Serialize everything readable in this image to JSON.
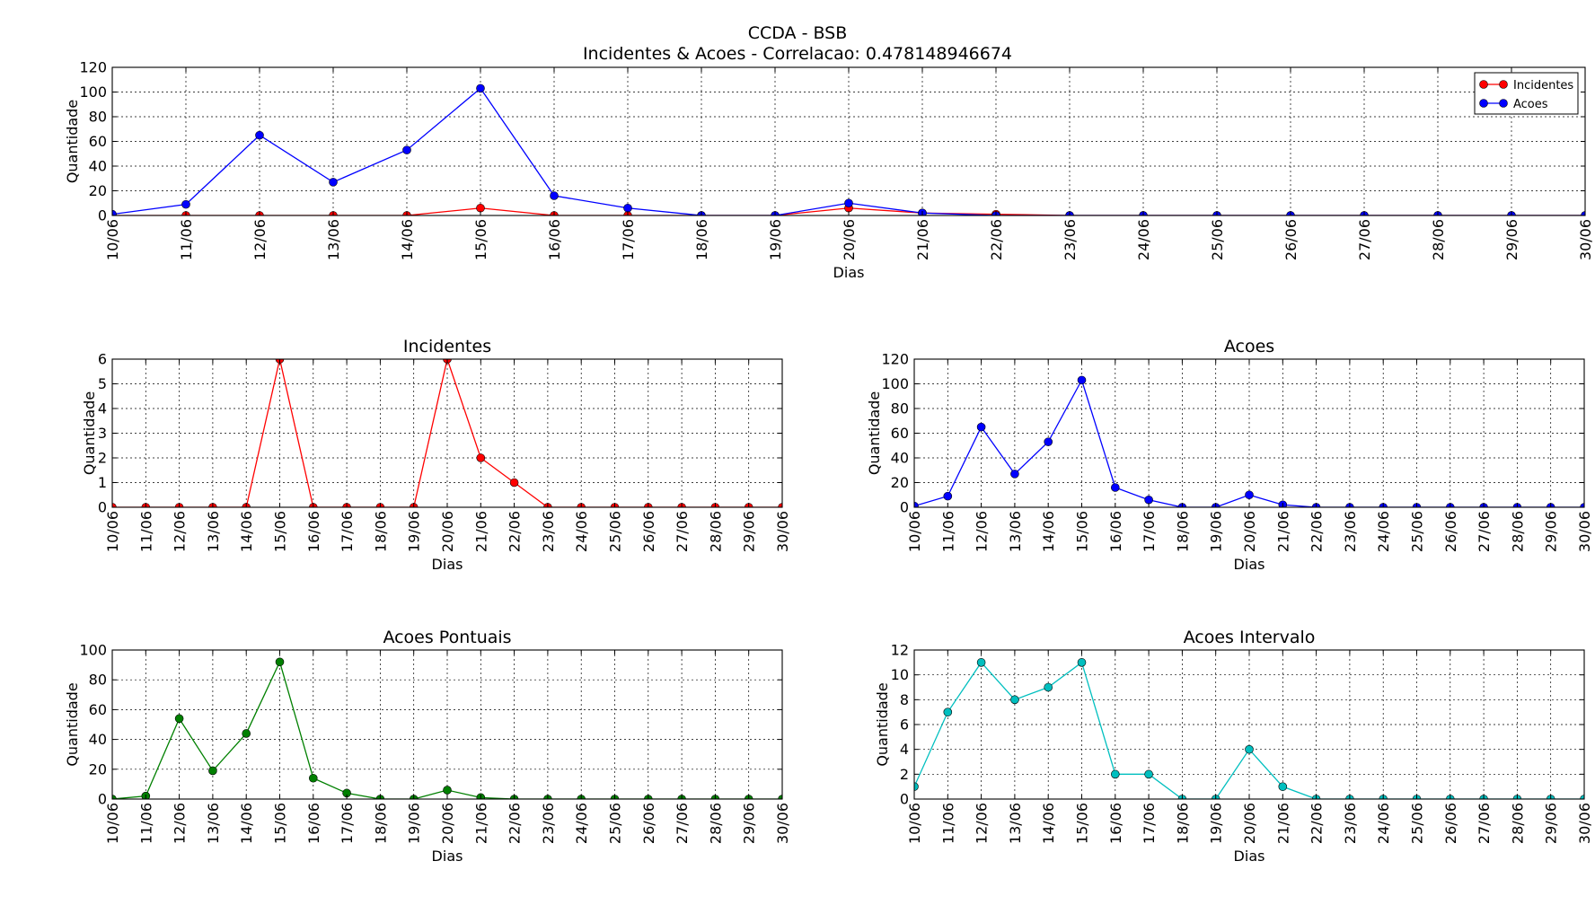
{
  "figure": {
    "title": "CCDA - BSB",
    "subtitle": "Incidentes & Acoes - Correlacao: 0.478148946674"
  },
  "chart_data": [
    {
      "id": "combined",
      "type": "line",
      "title": "",
      "xlabel": "Dias",
      "ylabel": "Quantidade",
      "ylim": [
        0,
        120
      ],
      "yticks": [
        0,
        20,
        40,
        60,
        80,
        100,
        120
      ],
      "categories": [
        "10/06",
        "11/06",
        "12/06",
        "13/06",
        "14/06",
        "15/06",
        "16/06",
        "17/06",
        "18/06",
        "19/06",
        "20/06",
        "21/06",
        "22/06",
        "23/06",
        "24/06",
        "25/06",
        "26/06",
        "27/06",
        "28/06",
        "29/06",
        "30/06"
      ],
      "grid": true,
      "legend": "top-right",
      "series": [
        {
          "name": "Incidentes",
          "color": "#ff0000",
          "values": [
            0,
            0,
            0,
            0,
            0,
            6,
            0,
            0,
            0,
            0,
            6,
            2,
            1,
            0,
            0,
            0,
            0,
            0,
            0,
            0,
            0
          ]
        },
        {
          "name": "Acoes",
          "color": "#0000ff",
          "values": [
            1,
            9,
            65,
            27,
            53,
            103,
            16,
            6,
            0,
            0,
            10,
            2,
            0,
            0,
            0,
            0,
            0,
            0,
            0,
            0,
            0
          ]
        }
      ]
    },
    {
      "id": "incidentes",
      "type": "line",
      "title": "Incidentes",
      "xlabel": "Dias",
      "ylabel": "Quantidade",
      "ylim": [
        0,
        6
      ],
      "yticks": [
        0,
        1,
        2,
        3,
        4,
        5,
        6
      ],
      "categories": [
        "10/06",
        "11/06",
        "12/06",
        "13/06",
        "14/06",
        "15/06",
        "16/06",
        "17/06",
        "18/06",
        "19/06",
        "20/06",
        "21/06",
        "22/06",
        "23/06",
        "24/06",
        "25/06",
        "26/06",
        "27/06",
        "28/06",
        "29/06",
        "30/06"
      ],
      "grid": true,
      "series": [
        {
          "color": "#ff0000",
          "values": [
            0,
            0,
            0,
            0,
            0,
            6,
            0,
            0,
            0,
            0,
            6,
            2,
            1,
            0,
            0,
            0,
            0,
            0,
            0,
            0,
            0
          ]
        }
      ]
    },
    {
      "id": "acoes",
      "type": "line",
      "title": "Acoes",
      "xlabel": "Dias",
      "ylabel": "Quantidade",
      "ylim": [
        0,
        120
      ],
      "yticks": [
        0,
        20,
        40,
        60,
        80,
        100,
        120
      ],
      "categories": [
        "10/06",
        "11/06",
        "12/06",
        "13/06",
        "14/06",
        "15/06",
        "16/06",
        "17/06",
        "18/06",
        "19/06",
        "20/06",
        "21/06",
        "22/06",
        "23/06",
        "24/06",
        "25/06",
        "26/06",
        "27/06",
        "28/06",
        "29/06",
        "30/06"
      ],
      "grid": true,
      "series": [
        {
          "color": "#0000ff",
          "values": [
            1,
            9,
            65,
            27,
            53,
            103,
            16,
            6,
            0,
            0,
            10,
            2,
            0,
            0,
            0,
            0,
            0,
            0,
            0,
            0,
            0
          ]
        }
      ]
    },
    {
      "id": "acoes-pontuais",
      "type": "line",
      "title": "Acoes Pontuais",
      "xlabel": "Dias",
      "ylabel": "Quantidade",
      "ylim": [
        0,
        100
      ],
      "yticks": [
        0,
        20,
        40,
        60,
        80,
        100
      ],
      "categories": [
        "10/06",
        "11/06",
        "12/06",
        "13/06",
        "14/06",
        "15/06",
        "16/06",
        "17/06",
        "18/06",
        "19/06",
        "20/06",
        "21/06",
        "22/06",
        "23/06",
        "24/06",
        "25/06",
        "26/06",
        "27/06",
        "28/06",
        "29/06",
        "30/06"
      ],
      "grid": true,
      "series": [
        {
          "color": "#008000",
          "values": [
            0,
            2,
            54,
            19,
            44,
            92,
            14,
            4,
            0,
            0,
            6,
            1,
            0,
            0,
            0,
            0,
            0,
            0,
            0,
            0,
            0
          ]
        }
      ]
    },
    {
      "id": "acoes-intervalo",
      "type": "line",
      "title": "Acoes Intervalo",
      "xlabel": "Dias",
      "ylabel": "Quantidade",
      "ylim": [
        0,
        12
      ],
      "yticks": [
        0,
        2,
        4,
        6,
        8,
        10,
        12
      ],
      "categories": [
        "10/06",
        "11/06",
        "12/06",
        "13/06",
        "14/06",
        "15/06",
        "16/06",
        "17/06",
        "18/06",
        "19/06",
        "20/06",
        "21/06",
        "22/06",
        "23/06",
        "24/06",
        "25/06",
        "26/06",
        "27/06",
        "28/06",
        "29/06",
        "30/06"
      ],
      "grid": true,
      "series": [
        {
          "color": "#00bfbf",
          "values": [
            1,
            7,
            11,
            8,
            9,
            11,
            2,
            2,
            0,
            0,
            4,
            1,
            0,
            0,
            0,
            0,
            0,
            0,
            0,
            0,
            0
          ]
        }
      ]
    }
  ]
}
